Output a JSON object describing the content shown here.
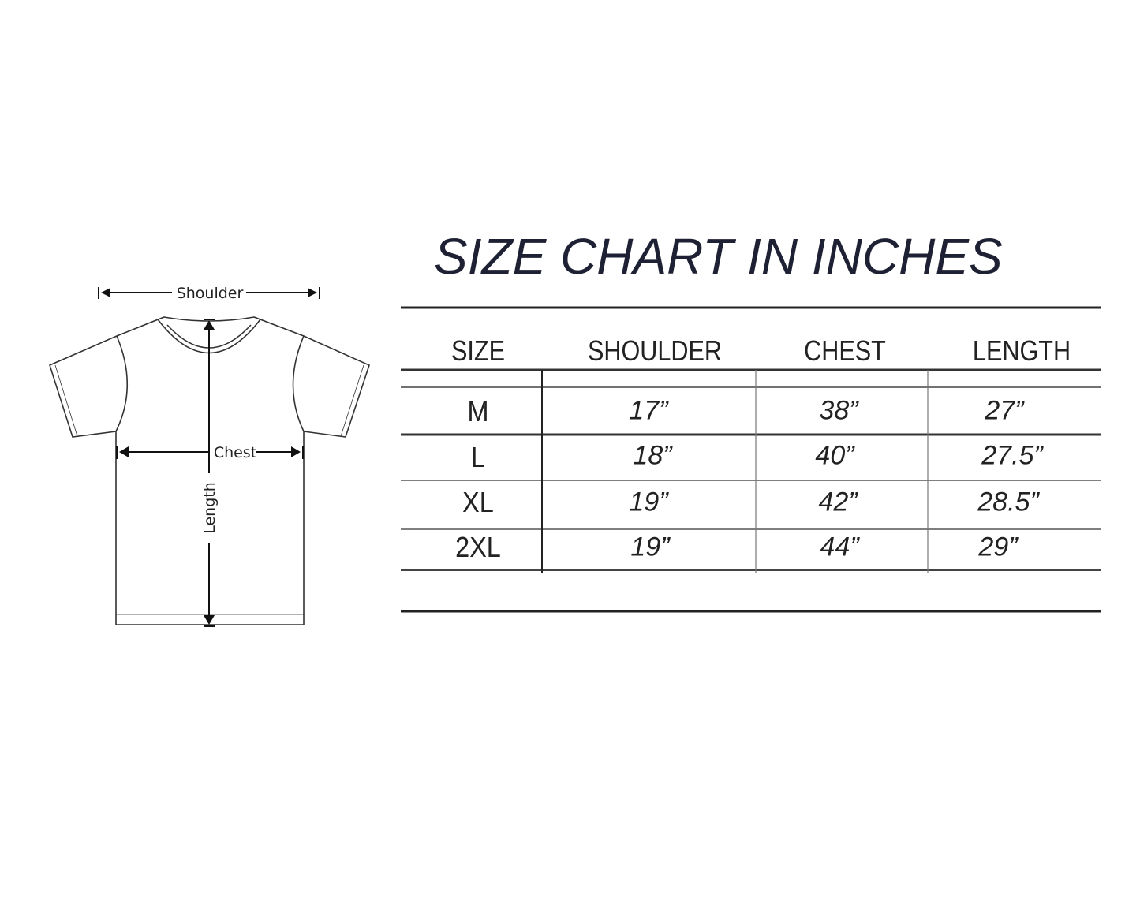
{
  "diagram": {
    "labels": {
      "shoulder": "Shoulder",
      "chest": "Chest",
      "length": "Length"
    }
  },
  "title": "SIZE CHART IN INCHES",
  "table": {
    "headers": [
      "SIZE",
      "SHOULDER",
      "CHEST",
      "LENGTH"
    ],
    "rows": [
      {
        "size": "M",
        "shoulder": "17”",
        "chest": "38”",
        "length": "27”"
      },
      {
        "size": "L",
        "shoulder": "18”",
        "chest": "40”",
        "length": "27.5”"
      },
      {
        "size": "XL",
        "shoulder": "19”",
        "chest": "42”",
        "length": "28.5”"
      },
      {
        "size": "2XL",
        "shoulder": "19”",
        "chest": "44”",
        "length": "29”"
      }
    ]
  },
  "colors": {
    "title": "#1e2133",
    "lines": "#222222"
  }
}
